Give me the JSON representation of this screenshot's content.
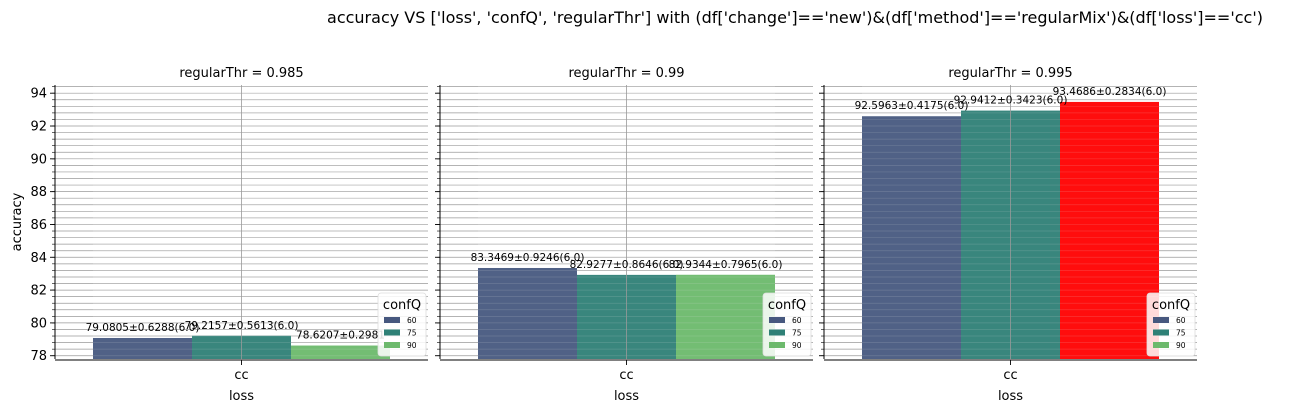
{
  "figure": {
    "suptitle": "accuracy VS ['loss', 'confQ', 'regularThr'] with (df['change']=='new')&(df['method']=='regularMix')&(df['loss']=='cc')"
  },
  "chart_data": [
    {
      "type": "bar",
      "title": "regularThr = 0.985",
      "xlabel": "loss",
      "ylabel": "accuracy",
      "categories": [
        "cc"
      ],
      "ylim": [
        77.8,
        94.5
      ],
      "yticks": [
        78,
        80,
        82,
        84,
        86,
        88,
        90,
        92,
        94
      ],
      "grid": true,
      "legend": {
        "title": "confQ",
        "position": "lower-right"
      },
      "series": [
        {
          "name": "60",
          "values": [
            79.0805
          ],
          "label": "79.0805±0.6288(6.0)",
          "color": "#47587f"
        },
        {
          "name": "75",
          "values": [
            79.2157
          ],
          "label": "79.2157±0.5613(6.0)",
          "color": "#2e8076"
        },
        {
          "name": "90",
          "values": [
            78.6207
          ],
          "label": "78.6207±0.2981",
          "color": "#6cb96c"
        }
      ]
    },
    {
      "type": "bar",
      "title": "regularThr = 0.99",
      "xlabel": "loss",
      "ylabel": "",
      "categories": [
        "cc"
      ],
      "ylim": [
        77.8,
        94.5
      ],
      "grid": true,
      "legend": {
        "title": "confQ",
        "position": "lower-right"
      },
      "series": [
        {
          "name": "60",
          "values": [
            83.3469
          ],
          "label": "83.3469±0.9246(6.0)",
          "color": "#47587f"
        },
        {
          "name": "75",
          "values": [
            82.9277
          ],
          "label": "82.9277±0.8646(6.0)",
          "color": "#2e8076"
        },
        {
          "name": "90",
          "values": [
            82.9344
          ],
          "label": "82.9344±0.7965(6.0)",
          "color": "#6cb96c"
        }
      ]
    },
    {
      "type": "bar",
      "title": "regularThr = 0.995",
      "xlabel": "loss",
      "ylabel": "",
      "categories": [
        "cc"
      ],
      "ylim": [
        77.8,
        94.5
      ],
      "grid": true,
      "legend": {
        "title": "confQ",
        "position": "lower-right"
      },
      "series": [
        {
          "name": "60",
          "values": [
            92.5963
          ],
          "label": "92.5963±0.4175(6.0)",
          "color": "#47587f"
        },
        {
          "name": "75",
          "values": [
            92.9412
          ],
          "label": "92.9412±0.3423(6.0)",
          "color": "#2e8076"
        },
        {
          "name": "90",
          "values": [
            93.4686
          ],
          "label": "93.4686±0.2834(6.0)",
          "color": "#ff0000"
        }
      ]
    }
  ]
}
